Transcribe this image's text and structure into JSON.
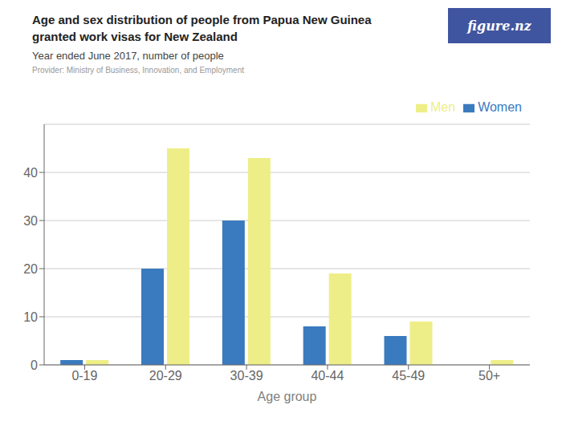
{
  "chart_data": {
    "type": "bar",
    "title": "Age and sex distribution of people from Papua New Guinea\ngranted work visas for New Zealand",
    "subtitle": "Year ended June 2017, number of people",
    "annotations": [
      "Provider: Ministry of Business, Innovation, and Employment",
      "figure.nz"
    ],
    "xlabel": "Age group",
    "categories": [
      "0-19",
      "20-29",
      "30-39",
      "40-44",
      "45-49",
      "50+"
    ],
    "series": [
      {
        "name": "Women",
        "color": "#3a7abf",
        "values": [
          1,
          20,
          30,
          8,
          6,
          0
        ]
      },
      {
        "name": "Men",
        "color": "#eeee88",
        "values": [
          1,
          45,
          43,
          19,
          9,
          1
        ]
      }
    ],
    "ylim": [
      0,
      50
    ],
    "yticks": [
      0,
      10,
      20,
      30,
      40
    ],
    "grid": true,
    "legend": "upper right"
  }
}
